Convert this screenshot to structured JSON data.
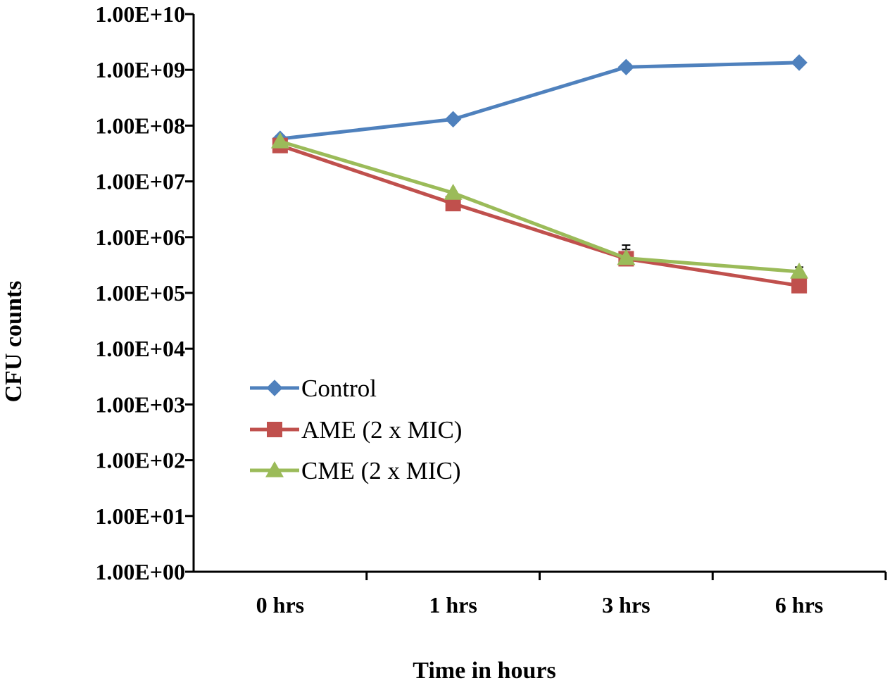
{
  "chart_data": {
    "type": "line",
    "title": "",
    "xlabel": "Time in hours",
    "ylabel": "CFU counts",
    "yscale": "log10",
    "ylim": [
      1,
      10000000000
    ],
    "categories": [
      "0 hrs",
      "1 hrs",
      "3 hrs",
      "6 hrs"
    ],
    "y_ticks": [
      {
        "value": 1,
        "label": "1.00E+00"
      },
      {
        "value": 10,
        "label": "1.00E+01"
      },
      {
        "value": 100,
        "label": "1.00E+02"
      },
      {
        "value": 1000,
        "label": "1.00E+03"
      },
      {
        "value": 10000,
        "label": "1.00E+04"
      },
      {
        "value": 100000,
        "label": "1.00E+05"
      },
      {
        "value": 1000000,
        "label": "1.00E+06"
      },
      {
        "value": 10000000,
        "label": "1.00E+07"
      },
      {
        "value": 100000000,
        "label": "1.00E+08"
      },
      {
        "value": 1000000000,
        "label": "1.00E+09"
      },
      {
        "value": 10000000000,
        "label": "1.00E+10"
      }
    ],
    "grid": false,
    "legend_position": "center-left",
    "series": [
      {
        "name": "Control",
        "color": "#4F81BD",
        "marker": "diamond",
        "values": [
          58000000,
          130000000,
          1120000000,
          1350000000
        ],
        "error_upper": [
          62000000,
          135000000,
          1300000000,
          1550000000
        ]
      },
      {
        "name": "AME (2 x MIC)",
        "color": "#C0504D",
        "marker": "square",
        "values": [
          44000000,
          4000000,
          410000,
          135000
        ],
        "error_upper": [
          46000000,
          4200000,
          600000,
          150000
        ]
      },
      {
        "name": "CME (2 x MIC)",
        "color": "#9BBB59",
        "marker": "triangle",
        "values": [
          52000000,
          6200000,
          420000,
          240000
        ],
        "error_upper": [
          55000000,
          6500000,
          720000,
          290000
        ]
      }
    ]
  }
}
